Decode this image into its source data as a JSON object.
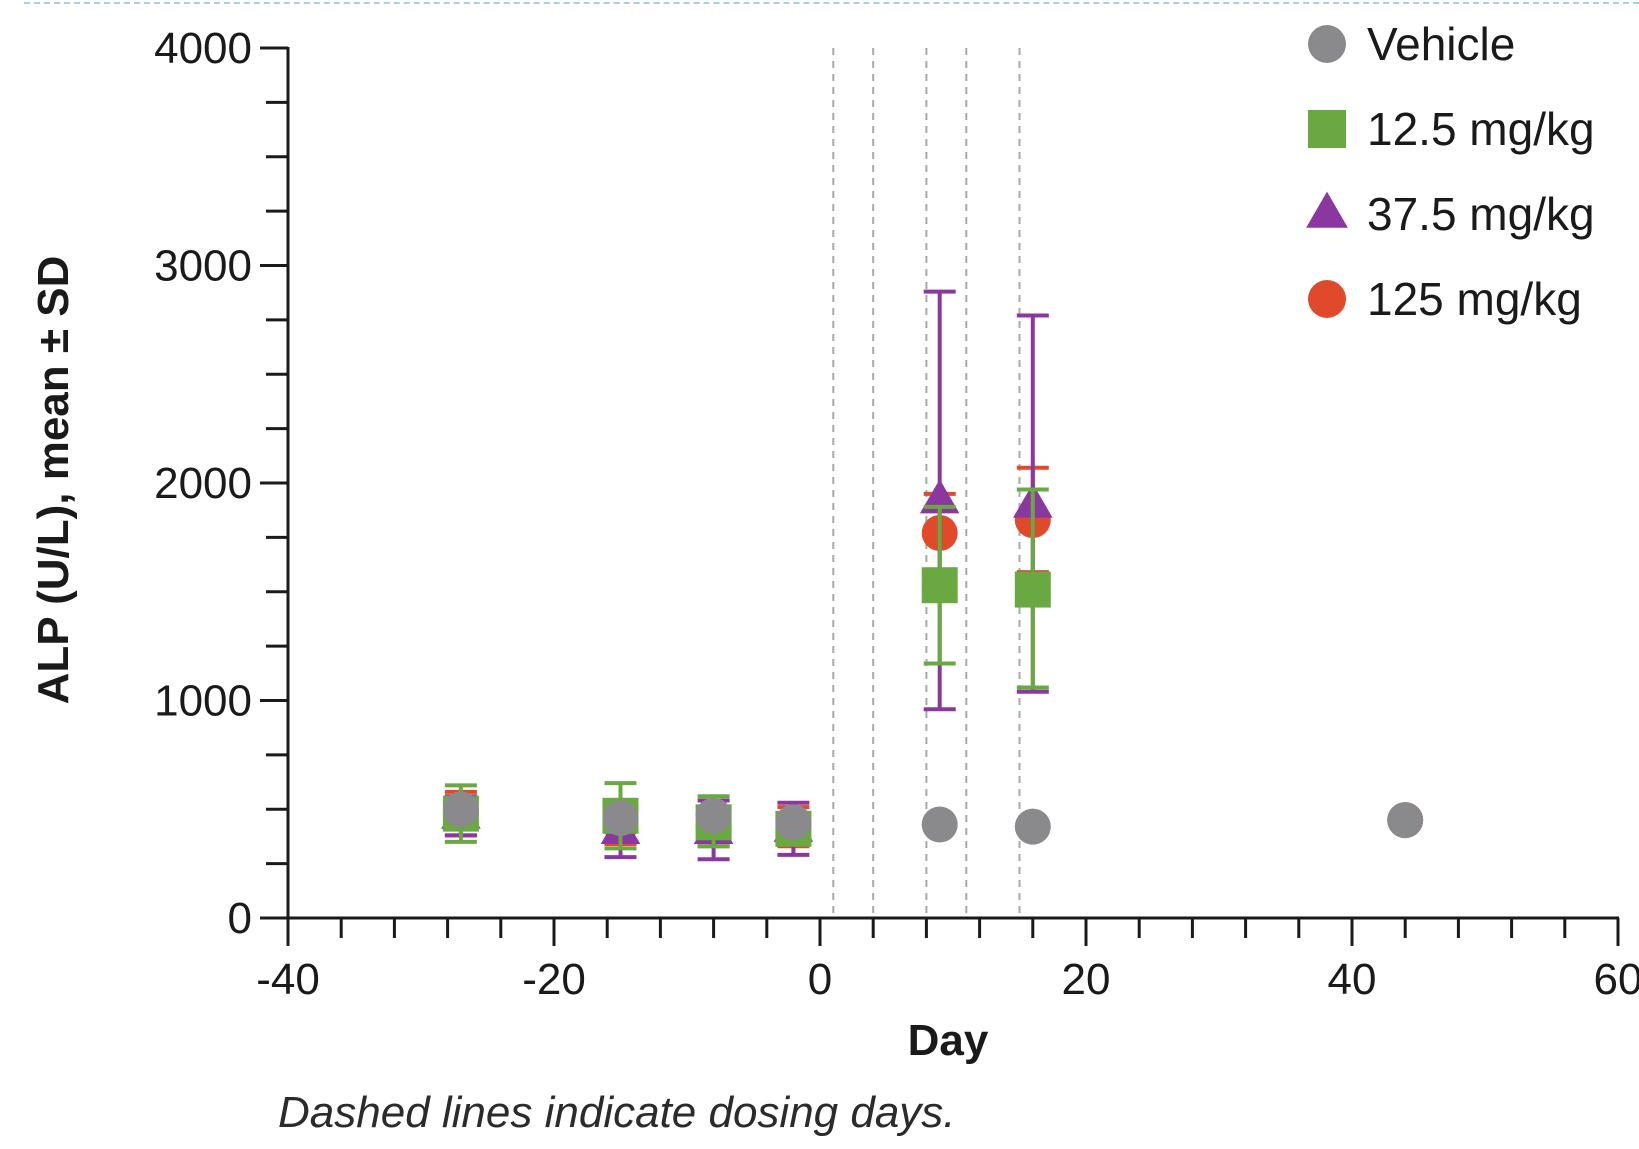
{
  "chart_data": {
    "type": "scatter",
    "xlabel": "Day",
    "ylabel": "ALP (U/L), mean ± SD",
    "xlim": [
      -40,
      60
    ],
    "ylim": [
      0,
      4000
    ],
    "xticks": [
      -40,
      -20,
      0,
      20,
      40,
      60
    ],
    "yticks": [
      0,
      1000,
      2000,
      3000,
      4000
    ],
    "x_minor_step": 4,
    "y_minor_step": 250,
    "dosing_days": [
      1,
      4,
      8,
      11,
      15
    ],
    "legend_position": "top-right",
    "series": [
      {
        "name": "125 mg/kg",
        "marker": "circle",
        "color": "#e04a2a",
        "points": [
          {
            "x": -27,
            "y": 480,
            "lo": 380,
            "hi": 580
          },
          {
            "x": -15,
            "y": 430,
            "lo": 340,
            "hi": 520
          },
          {
            "x": -8,
            "y": 420,
            "lo": 330,
            "hi": 510
          },
          {
            "x": -2,
            "y": 420,
            "lo": 330,
            "hi": 510
          },
          {
            "x": 9,
            "y": 1770,
            "lo": 1590,
            "hi": 1950
          },
          {
            "x": 16,
            "y": 1830,
            "lo": 1590,
            "hi": 2070
          },
          {
            "x": 44,
            "y": 450,
            "lo": null,
            "hi": null
          }
        ]
      },
      {
        "name": "37.5 mg/kg",
        "marker": "triangle",
        "color": "#8a38a0",
        "points": [
          {
            "x": -27,
            "y": 470,
            "lo": 380,
            "hi": 560
          },
          {
            "x": -15,
            "y": 400,
            "lo": 280,
            "hi": 520
          },
          {
            "x": -8,
            "y": 400,
            "lo": 270,
            "hi": 540
          },
          {
            "x": -2,
            "y": 410,
            "lo": 290,
            "hi": 530
          },
          {
            "x": 9,
            "y": 1920,
            "lo": 960,
            "hi": 2880
          },
          {
            "x": 16,
            "y": 1900,
            "lo": 1040,
            "hi": 2770
          }
        ]
      },
      {
        "name": "12.5 mg/kg",
        "marker": "square",
        "color": "#6aa842",
        "points": [
          {
            "x": -27,
            "y": 480,
            "lo": 350,
            "hi": 610
          },
          {
            "x": -15,
            "y": 470,
            "lo": 320,
            "hi": 620
          },
          {
            "x": -8,
            "y": 440,
            "lo": 330,
            "hi": 560
          },
          {
            "x": -2,
            "y": 410,
            "lo": 340,
            "hi": 480
          },
          {
            "x": 9,
            "y": 1530,
            "lo": 1170,
            "hi": 1890
          },
          {
            "x": 16,
            "y": 1510,
            "lo": 1060,
            "hi": 1970
          }
        ]
      },
      {
        "name": "Vehicle",
        "marker": "circle",
        "color": "#8a8a8c",
        "points": [
          {
            "x": -27,
            "y": 500
          },
          {
            "x": -15,
            "y": 460
          },
          {
            "x": -8,
            "y": 470
          },
          {
            "x": -2,
            "y": 440
          },
          {
            "x": 9,
            "y": 430
          },
          {
            "x": 16,
            "y": 420
          },
          {
            "x": 44,
            "y": 450
          }
        ]
      }
    ],
    "legend_order": [
      "Vehicle",
      "12.5 mg/kg",
      "37.5 mg/kg",
      "125 mg/kg"
    ]
  },
  "caption": "Dashed lines indicate dosing days."
}
